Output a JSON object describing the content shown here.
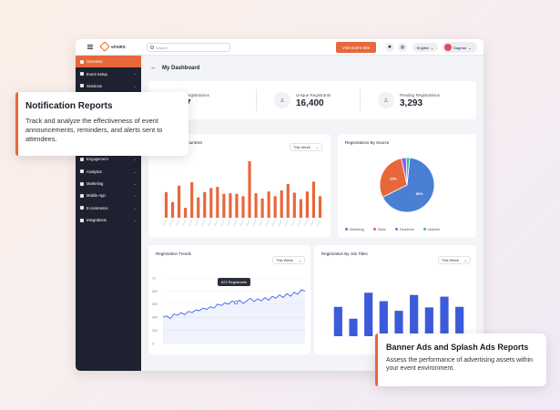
{
  "colors": {
    "accent": "#e8673a",
    "sidebar": "#1e2230",
    "blue_bar": "#3b5bdb",
    "line": "#4263eb"
  },
  "topbar": {
    "logo_text": "vFAIRS",
    "search_placeholder": "Search",
    "visit_button": "Visit Event Site",
    "language": "English",
    "user_name": "Dagmar"
  },
  "sidebar": {
    "items": [
      {
        "label": "Overview",
        "icon": "home-icon"
      },
      {
        "label": "Event Setup",
        "icon": "settings-icon"
      },
      {
        "label": "Sessions",
        "icon": "calendar-icon"
      },
      {
        "label": "",
        "icon": "blank-icon"
      },
      {
        "label": "",
        "icon": "blank-icon"
      },
      {
        "label": "",
        "icon": "blank-icon"
      },
      {
        "label": "",
        "icon": "blank-icon"
      },
      {
        "label": "",
        "icon": "blank-icon"
      },
      {
        "label": "Engagement",
        "icon": "chat-icon"
      },
      {
        "label": "Analytics",
        "icon": "chart-icon"
      },
      {
        "label": "Marketing",
        "icon": "megaphone-icon"
      },
      {
        "label": "Mobile App",
        "icon": "phone-icon"
      },
      {
        "label": "E-commerce",
        "icon": "cart-icon"
      },
      {
        "label": "Integrations",
        "icon": "plug-icon"
      }
    ]
  },
  "main": {
    "title": "My Dashboard",
    "stats": [
      {
        "label": "Total Registrations",
        "value": "707"
      },
      {
        "label": "Unique Registrants",
        "value": "16,400"
      },
      {
        "label": "Pending Registrations",
        "value": "3,293"
      }
    ],
    "countries_card": {
      "title": "Countries",
      "select": "This Week"
    },
    "source_card": {
      "title": "Registrations By Source",
      "select": ""
    },
    "trends_card": {
      "title": "Registration Trends",
      "select": "This Week",
      "tooltip": "623 Registrants"
    },
    "jobs_card": {
      "title": "Registration By Job Titles",
      "select": "This Week"
    }
  },
  "chart_data": [
    {
      "type": "bar",
      "title": "Countries",
      "values": [
        44,
        27,
        55,
        17,
        61,
        35,
        44,
        51,
        53,
        41,
        42,
        41,
        37,
        97,
        42,
        33,
        45,
        37,
        47,
        58,
        43,
        32,
        45,
        62,
        37
      ],
      "ylim": [
        0,
        100
      ],
      "color": "#e8673a"
    },
    {
      "type": "pie",
      "title": "Registrations By Source",
      "legend": [
        "Marketing",
        "Sales",
        "Facebook",
        "Linkedin"
      ],
      "slice_labels": [
        "66%",
        "29%",
        "",
        ""
      ],
      "values": [
        66,
        29,
        3,
        2
      ],
      "colors": [
        "#4a7fd4",
        "#e8673a",
        "#8b5cf6",
        "#34c38f"
      ]
    },
    {
      "type": "line",
      "title": "Registration Trends",
      "yticks": [
        "1k",
        "800",
        "600",
        "400",
        "200",
        "0"
      ],
      "x": [
        0,
        1,
        2,
        3,
        4,
        5,
        6,
        7,
        8,
        9,
        10,
        11,
        12,
        13,
        14,
        15,
        16,
        17,
        18,
        19,
        20,
        21,
        22,
        23,
        24,
        25,
        26,
        27,
        28,
        29,
        30,
        31,
        32,
        33,
        34,
        35,
        36,
        37,
        38,
        39
      ],
      "values": [
        400,
        420,
        380,
        450,
        430,
        470,
        440,
        490,
        470,
        510,
        500,
        540,
        520,
        560,
        540,
        600,
        580,
        620,
        600,
        650,
        623,
        660,
        610,
        650,
        690,
        640,
        680,
        650,
        700,
        660,
        720,
        690,
        740,
        700,
        760,
        720,
        780,
        750,
        820,
        800
      ],
      "ylim": [
        0,
        1000
      ]
    },
    {
      "type": "bar",
      "title": "Registration By Job Titles",
      "values": [
        52,
        31,
        77,
        62,
        45,
        73,
        51,
        70,
        52
      ],
      "ylim": [
        0,
        100
      ],
      "color": "#3b5bdb"
    }
  ],
  "overlays": {
    "notification": {
      "title": "Notification Reports",
      "body": "Track and analyze the effectiveness of event announcements, reminders, and alerts sent to attendees."
    },
    "banner": {
      "title": "Banner Ads and Splash Ads Reports",
      "body": "Assess the performance of advertising assets within your event environment."
    }
  }
}
